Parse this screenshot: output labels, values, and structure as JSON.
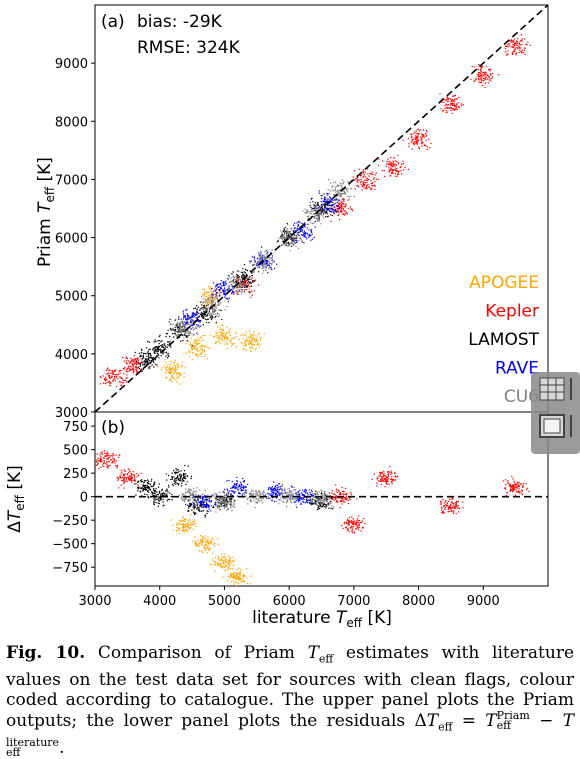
{
  "chart_data": [
    {
      "type": "scatter",
      "panel_label": "(a)",
      "annotations": [
        "bias: -29K",
        "RMSE: 324K"
      ],
      "ylabel": "Priam T_eff [K]",
      "xlim": [
        3000,
        10000
      ],
      "ylim": [
        3000,
        10000
      ],
      "yticks": [
        3000,
        4000,
        5000,
        6000,
        7000,
        8000,
        9000
      ],
      "one_to_one_line": true,
      "legend_placement": "lower-right",
      "series": [
        {
          "name": "APOGEE",
          "color": "#ffa500",
          "x": [
            4200,
            4600,
            5000,
            5400,
            4800
          ],
          "y": [
            3700,
            4100,
            4300,
            4200,
            5000
          ]
        },
        {
          "name": "Kepler",
          "color": "#ff0000",
          "x": [
            3300,
            3600,
            5300,
            6800,
            7200,
            7600,
            8000,
            8500,
            9000,
            9500
          ],
          "y": [
            3600,
            3800,
            5200,
            6500,
            7000,
            7200,
            7700,
            8300,
            8800,
            9300
          ]
        },
        {
          "name": "LAMOST",
          "color": "#000000",
          "x": [
            3800,
            4000,
            4300,
            4700,
            5300,
            6000,
            6500
          ],
          "y": [
            3900,
            4100,
            4400,
            4700,
            5300,
            6000,
            6500
          ]
        },
        {
          "name": "RAVE",
          "color": "#0000ff",
          "x": [
            4500,
            5000,
            5600,
            6200,
            6600
          ],
          "y": [
            4600,
            5100,
            5600,
            6100,
            6600
          ]
        },
        {
          "name": "CU6",
          "color": "#808080",
          "x": [
            4400,
            4800,
            5200,
            5600,
            6000,
            6400,
            6800
          ],
          "y": [
            4450,
            4850,
            5200,
            5600,
            6000,
            6400,
            6800
          ]
        }
      ]
    },
    {
      "type": "scatter",
      "panel_label": "(b)",
      "xlabel": "literature T_eff [K]",
      "ylabel": "ΔT_eff [K]",
      "xlim": [
        3000,
        10000
      ],
      "ylim": [
        -950,
        900
      ],
      "xticks": [
        3000,
        4000,
        5000,
        6000,
        7000,
        8000,
        9000
      ],
      "yticks": [
        -750,
        -500,
        -250,
        0,
        250,
        500,
        750
      ],
      "zero_line": true,
      "series": [
        {
          "name": "APOGEE",
          "color": "#ffa500",
          "x": [
            4400,
            4700,
            5000,
            5200
          ],
          "y": [
            -300,
            -500,
            -700,
            -850
          ]
        },
        {
          "name": "Kepler",
          "color": "#ff0000",
          "x": [
            3200,
            3500,
            6800,
            7000,
            7500,
            8500,
            9500
          ],
          "y": [
            400,
            200,
            0,
            -300,
            200,
            -100,
            100
          ]
        },
        {
          "name": "LAMOST",
          "color": "#000000",
          "x": [
            3800,
            4000,
            4300,
            4600,
            5000,
            6500
          ],
          "y": [
            100,
            0,
            200,
            -100,
            -50,
            -50
          ]
        },
        {
          "name": "RAVE",
          "color": "#0000ff",
          "x": [
            4700,
            5200,
            5800,
            6200
          ],
          "y": [
            -50,
            100,
            50,
            0
          ]
        },
        {
          "name": "CU6",
          "color": "#808080",
          "x": [
            4500,
            5000,
            5500,
            6000,
            6500
          ],
          "y": [
            0,
            -50,
            0,
            10,
            -20
          ]
        }
      ]
    }
  ],
  "caption": {
    "label": "Fig. 10.",
    "text": "Comparison of Priam T_eff estimates with literature values on the test data set for sources with clean flags, colour coded according to catalogue. The upper panel plots the Priam outputs; the lower panel plots the residuals ΔT_eff = T_eff^Priam − T_eff^literature."
  }
}
